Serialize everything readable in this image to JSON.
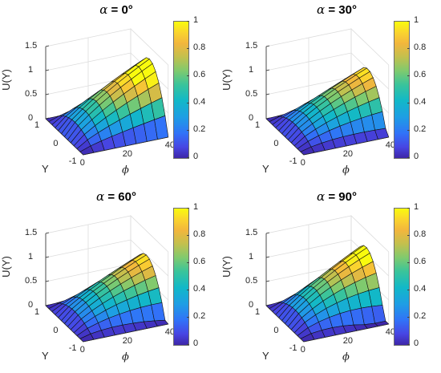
{
  "figure": {
    "panels": [
      {
        "title_symbol": "α",
        "title_value": "= 0°",
        "peak": 1.25,
        "skew": 0.0
      },
      {
        "title_symbol": "α",
        "title_value": "= 30°",
        "peak": 1.0,
        "skew": 0.3
      },
      {
        "title_symbol": "α",
        "title_value": "= 60°",
        "peak": 1.0,
        "skew": 0.45
      },
      {
        "title_symbol": "α",
        "title_value": "= 90°",
        "peak": 1.15,
        "skew": 0.6
      }
    ],
    "zlabel": "U(Y)",
    "ylabel": "Y",
    "xlabel": "ϕ",
    "z_ticks": [
      "0",
      "0.5",
      "1",
      "1.5"
    ],
    "y_ticks": [
      "1",
      "0",
      "-1"
    ],
    "x_ticks": [
      "0",
      "20",
      "40"
    ],
    "colorbar_ticks": [
      "0",
      "0.2",
      "0.4",
      "0.6",
      "0.8",
      "1"
    ],
    "colors": {
      "low": "#3e26a8",
      "mid": "#1e9ee4",
      "high": "#f9fb0e",
      "axis": "#262626"
    }
  },
  "chart_data": [
    {
      "type": "surface",
      "title": "α = 0°",
      "zlabel": "U(Y)",
      "xlabel": "ϕ",
      "ylabel": "Y",
      "x_range": [
        0,
        40
      ],
      "y_range": [
        -1,
        1
      ],
      "z_range": [
        0,
        1.5
      ],
      "z_peak": 1.25,
      "colorbar_range": [
        0,
        1
      ]
    },
    {
      "type": "surface",
      "title": "α = 30°",
      "zlabel": "U(Y)",
      "xlabel": "ϕ",
      "ylabel": "Y",
      "x_range": [
        0,
        40
      ],
      "y_range": [
        -1,
        1
      ],
      "z_range": [
        0,
        1.5
      ],
      "z_peak": 1.0,
      "colorbar_range": [
        0,
        1
      ]
    },
    {
      "type": "surface",
      "title": "α = 60°",
      "zlabel": "U(Y)",
      "xlabel": "ϕ",
      "ylabel": "Y",
      "x_range": [
        0,
        40
      ],
      "y_range": [
        -1,
        1
      ],
      "z_range": [
        0,
        1.5
      ],
      "z_peak": 1.0,
      "colorbar_range": [
        0,
        1
      ]
    },
    {
      "type": "surface",
      "title": "α = 90°",
      "zlabel": "U(Y)",
      "xlabel": "ϕ",
      "ylabel": "Y",
      "x_range": [
        0,
        40
      ],
      "y_range": [
        -1,
        1
      ],
      "z_range": [
        0,
        1.5
      ],
      "z_peak": 1.15,
      "colorbar_range": [
        0,
        1
      ]
    }
  ]
}
